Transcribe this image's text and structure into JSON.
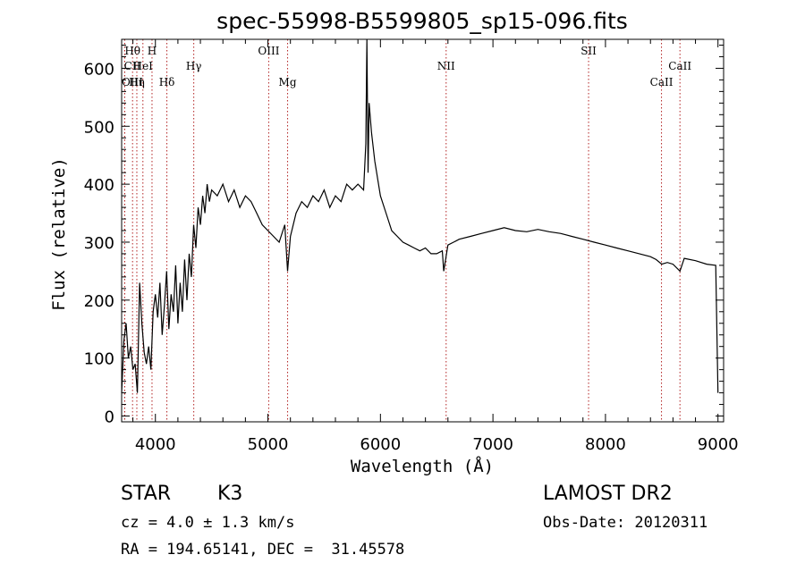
{
  "chart_data": {
    "type": "line",
    "title": "spec-55998-B5599805_sp15-096.fits",
    "xlabel": "Wavelength (Å)",
    "ylabel": "Flux (relative)",
    "xlim": [
      3700,
      9050
    ],
    "ylim": [
      -10,
      650
    ],
    "xticks": [
      4000,
      5000,
      6000,
      7000,
      8000,
      9000
    ],
    "yticks": [
      0,
      100,
      200,
      300,
      400,
      500,
      600
    ],
    "grid": false,
    "series": [
      {
        "color": "#000000",
        "x": [
          3700,
          3720,
          3740,
          3760,
          3780,
          3800,
          3820,
          3840,
          3860,
          3880,
          3900,
          3920,
          3940,
          3960,
          3980,
          4000,
          4020,
          4040,
          4060,
          4080,
          4100,
          4120,
          4140,
          4160,
          4180,
          4200,
          4220,
          4240,
          4260,
          4280,
          4300,
          4320,
          4340,
          4360,
          4380,
          4400,
          4420,
          4440,
          4460,
          4480,
          4500,
          4550,
          4600,
          4650,
          4700,
          4750,
          4800,
          4850,
          4900,
          4950,
          5000,
          5050,
          5100,
          5150,
          5175,
          5200,
          5250,
          5300,
          5350,
          5400,
          5450,
          5500,
          5550,
          5600,
          5650,
          5700,
          5750,
          5800,
          5850,
          5870,
          5880,
          5890,
          5900,
          5920,
          5950,
          6000,
          6050,
          6100,
          6150,
          6200,
          6250,
          6300,
          6350,
          6400,
          6450,
          6500,
          6550,
          6563,
          6600,
          6650,
          6700,
          6800,
          6900,
          7000,
          7100,
          7200,
          7300,
          7400,
          7500,
          7600,
          7700,
          7800,
          7900,
          8000,
          8100,
          8200,
          8300,
          8400,
          8450,
          8500,
          8550,
          8600,
          8662,
          8700,
          8800,
          8900,
          8980,
          9000
        ],
        "y": [
          40,
          130,
          160,
          100,
          120,
          80,
          90,
          40,
          230,
          160,
          110,
          90,
          120,
          80,
          180,
          210,
          170,
          230,
          140,
          190,
          250,
          150,
          210,
          180,
          260,
          160,
          230,
          180,
          270,
          200,
          280,
          240,
          330,
          290,
          360,
          330,
          380,
          350,
          400,
          370,
          390,
          380,
          400,
          370,
          390,
          360,
          380,
          370,
          350,
          330,
          320,
          310,
          300,
          330,
          250,
          310,
          350,
          370,
          360,
          380,
          370,
          390,
          360,
          380,
          370,
          400,
          390,
          400,
          390,
          470,
          650,
          420,
          540,
          490,
          440,
          380,
          350,
          320,
          310,
          300,
          295,
          290,
          285,
          290,
          280,
          280,
          285,
          250,
          295,
          300,
          305,
          310,
          315,
          320,
          325,
          320,
          318,
          322,
          318,
          315,
          310,
          305,
          300,
          295,
          290,
          285,
          280,
          275,
          270,
          262,
          265,
          262,
          250,
          272,
          268,
          262,
          260,
          40
        ]
      }
    ],
    "annotations": [
      {
        "label": "Hθ",
        "x": 3797,
        "row": 1
      },
      {
        "label": "CII",
        "x": 3727,
        "row": 2
      },
      {
        "label": "OIII",
        "x": 3727,
        "row": 3
      },
      {
        "label": "Hη",
        "x": 3835,
        "row": 3
      },
      {
        "label": "HeI",
        "x": 3889,
        "row": 2
      },
      {
        "label": "H",
        "x": 3970,
        "row": 1
      },
      {
        "label": "Hδ",
        "x": 4102,
        "row": 3
      },
      {
        "label": "Hγ",
        "x": 4341,
        "row": 2
      },
      {
        "label": "OIII",
        "x": 5007,
        "row": 1
      },
      {
        "label": "Mg",
        "x": 5175,
        "row": 3
      },
      {
        "label": "NII",
        "x": 6584,
        "row": 2
      },
      {
        "label": "SII",
        "x": 7850,
        "row": 1
      },
      {
        "label": "CaII",
        "x": 8498,
        "row": 3
      },
      {
        "label": "CaII",
        "x": 8662,
        "row": 2
      }
    ]
  },
  "info": {
    "object_class": "STAR",
    "subclass": "K3",
    "survey": "LAMOST DR2",
    "cz": "cz = 4.0 ± 1.3 km/s",
    "obs_date": "Obs-Date: 20120311",
    "coords": "RA = 194.65141, DEC =  31.45578"
  },
  "colors": {
    "spectrum": "#000000",
    "line_markers": "#b22222",
    "axes": "#000000"
  }
}
